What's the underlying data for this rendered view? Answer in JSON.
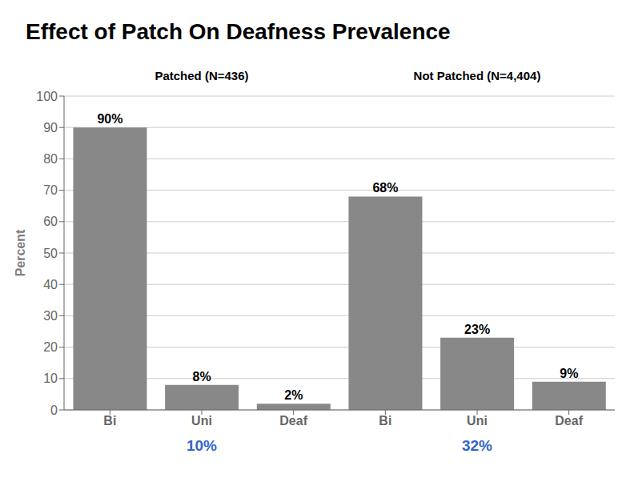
{
  "chart_data": {
    "type": "bar",
    "title": "Effect of Patch On Deafness Prevalence",
    "y_label": "Percent",
    "categories": [
      "Bi",
      "Uni",
      "Deaf",
      "Bi",
      "Uni",
      "Deaf"
    ],
    "values": [
      90,
      8,
      2,
      68,
      23,
      9
    ],
    "value_labels": [
      "90%",
      "8%",
      "2%",
      "68%",
      "23%",
      "9%"
    ],
    "data_labels": true,
    "color": "#888888",
    "ylim": [
      0,
      100
    ],
    "yticks": [
      0,
      10,
      20,
      30,
      40,
      50,
      60,
      70,
      80,
      90,
      100
    ],
    "grid": true,
    "groups": [
      {
        "label": "Patched (N=436)",
        "note": "10%"
      },
      {
        "label": "Not Patched (N=4,404)",
        "note": "32%"
      }
    ],
    "note_color": "#3366cc"
  }
}
